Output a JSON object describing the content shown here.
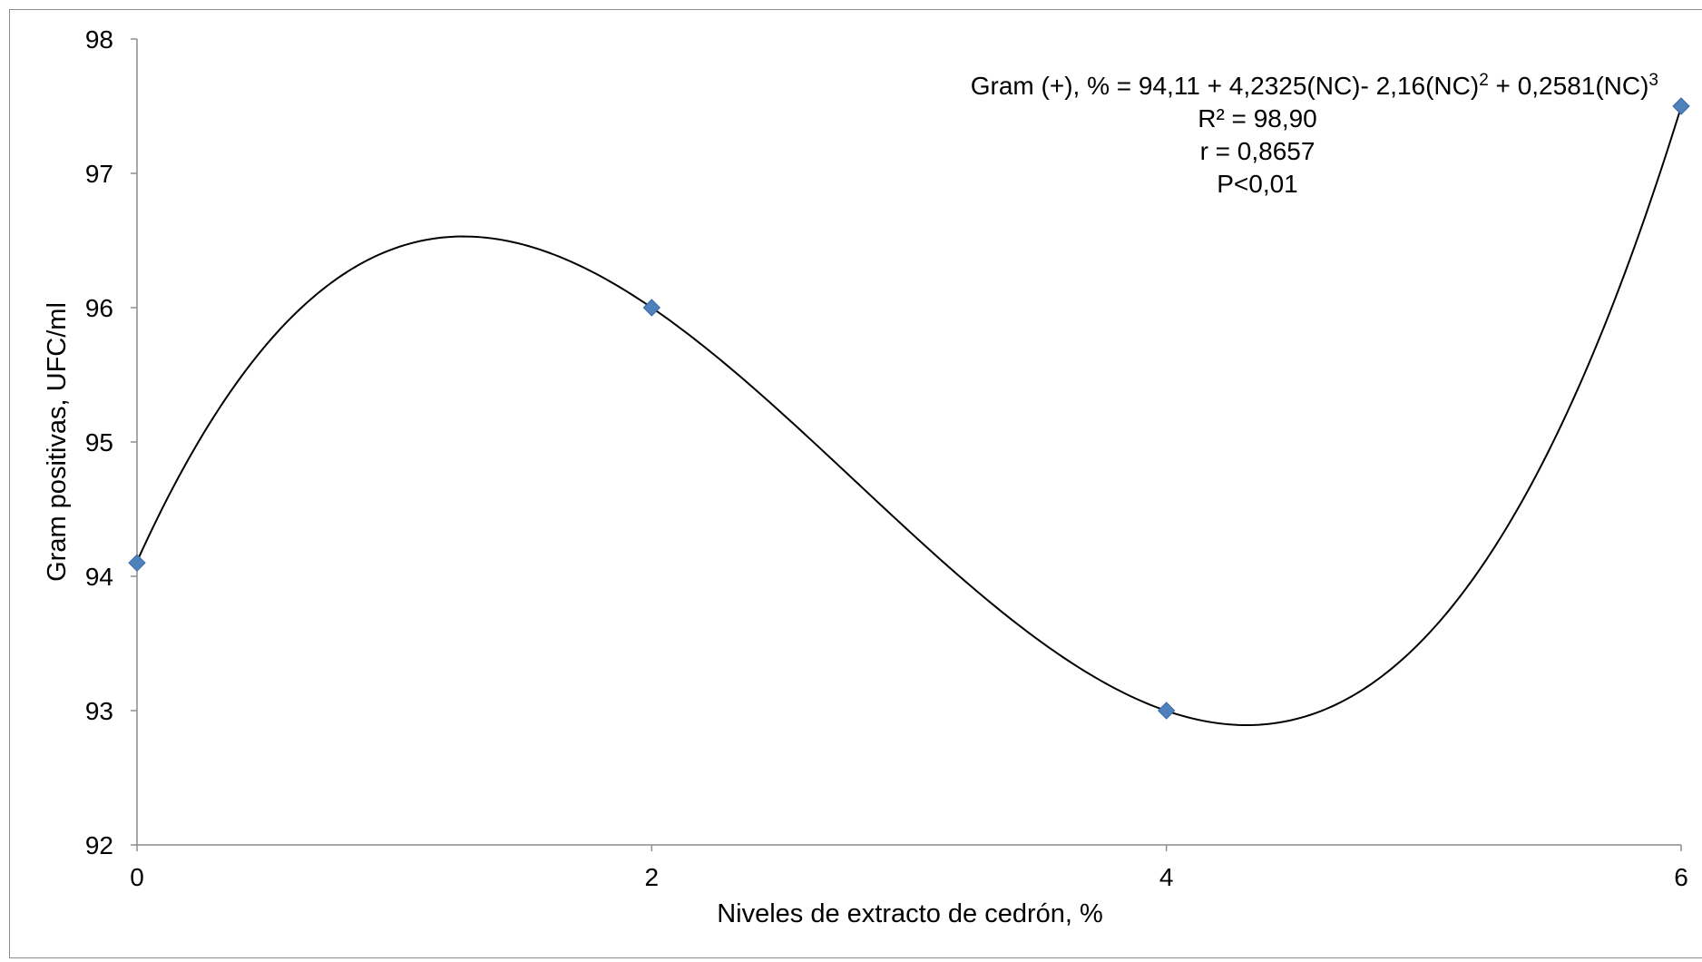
{
  "chart_data": {
    "type": "scatter",
    "title": "",
    "xlabel": "Niveles de extracto de cedrón, %",
    "ylabel": "Gram positivas, UFC/ml",
    "xlim": [
      0,
      6
    ],
    "ylim": [
      92,
      98
    ],
    "x_ticks": [
      "0",
      "2",
      "4",
      "6"
    ],
    "y_ticks": [
      "92",
      "93",
      "94",
      "95",
      "96",
      "97",
      "98"
    ],
    "grid": false,
    "points": [
      {
        "x": 0,
        "y": 94.1
      },
      {
        "x": 2,
        "y": 96.0
      },
      {
        "x": 4,
        "y": 93.0
      },
      {
        "x": 6,
        "y": 97.5
      }
    ],
    "trendline": {
      "type": "polynomial",
      "order": 3,
      "coefficients": [
        94.11,
        4.2325,
        -2.16,
        0.2581
      ]
    },
    "annotation": {
      "equation_prefix": "Gram (+), %  =  94,11 + 4,2325(NC)- 2,16(NC)",
      "sup2": "2",
      "equation_mid": " + 0,2581(NC)",
      "sup3": "3",
      "r2": "R² = 98,90",
      "r": "r = 0,8657",
      "p": "P<0,01"
    },
    "colors": {
      "marker": "#4f81bd",
      "marker_edge": "#3a6aa3",
      "trend": "#000000",
      "axis": "#8c8c8c"
    }
  }
}
